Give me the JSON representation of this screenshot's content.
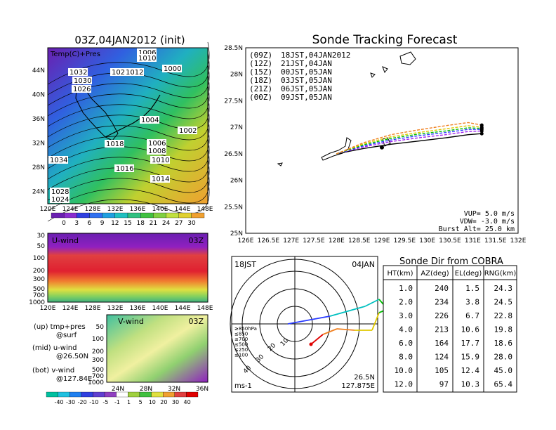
{
  "left_panel": {
    "title": "03Z,04JAN2012 (init)",
    "top_map": {
      "label": "Temp(C)+Pres",
      "lat_ticks": [
        "44N",
        "40N",
        "36N",
        "32N",
        "28N",
        "24N"
      ],
      "lon_ticks": [
        "120E",
        "124E",
        "128E",
        "132E",
        "136E",
        "140E",
        "144E",
        "148E"
      ],
      "pressure_labels": [
        "1006",
        "1010",
        "1032",
        "1020",
        "1012",
        "1000",
        "1030",
        "1026",
        "1004",
        "1002",
        "1018",
        "1006",
        "1008",
        "1034",
        "1010",
        "1016",
        "1014",
        "1028",
        "1024"
      ],
      "colorbar_ticks": [
        "0",
        "3",
        "6",
        "9",
        "12",
        "15",
        "18",
        "21",
        "24",
        "27",
        "30"
      ]
    },
    "u_panel": {
      "label": "U-wind",
      "time": "03Z",
      "p_ticks": [
        "30",
        "50",
        "100",
        "200",
        "300",
        "500",
        "700",
        "1000"
      ],
      "lon_ticks": [
        "120E",
        "124E",
        "128E",
        "132E",
        "136E",
        "140E",
        "144E",
        "148E"
      ]
    },
    "v_panel": {
      "label": "V-wind",
      "time": "03Z",
      "p_ticks": [
        "50",
        "100",
        "200",
        "300",
        "500",
        "700",
        "1000"
      ],
      "lat_ticks": [
        "24N",
        "28N",
        "32N",
        "36N"
      ]
    },
    "legend_lines": [
      "(up) tmp+pres",
      "@surf",
      "(mid) u-wind",
      "@26.50N",
      "(bot) v-wind",
      "@127.84E"
    ],
    "wind_colorbar_ticks": [
      "-40",
      "-30",
      "-20",
      "-10",
      "-5",
      "-1",
      "1",
      "5",
      "10",
      "20",
      "30",
      "40"
    ]
  },
  "track_panel": {
    "title": "Sonde Tracking Forecast",
    "legend": [
      {
        "utc": "(09Z)",
        "jst": "18JST,04JAN2012",
        "color": "#000000"
      },
      {
        "utc": "(12Z)",
        "jst": "21JST,04JAN",
        "color": "#a020f0"
      },
      {
        "utc": "(15Z)",
        "jst": "00JST,05JAN",
        "color": "#2a3cff"
      },
      {
        "utc": "(18Z)",
        "jst": "03JST,05JAN",
        "color": "#00c000"
      },
      {
        "utc": "(21Z)",
        "jst": "06JST,05JAN",
        "color": "#e0c800"
      },
      {
        "utc": "(00Z)",
        "jst": "09JST,05JAN",
        "color": "#f08020"
      }
    ],
    "lat_ticks": [
      "28.5N",
      "28N",
      "27.5N",
      "27N",
      "26.5N",
      "26N",
      "25.5N",
      "25N"
    ],
    "lon_ticks": [
      "126E",
      "126.5E",
      "127E",
      "127.5E",
      "128E",
      "128.5E",
      "129E",
      "129.5E",
      "130E",
      "130.5E",
      "131E",
      "131.5E",
      "132E"
    ],
    "params": [
      "VUP= 5.0 m/s",
      "VDW= -3.0 m/s",
      "Burst Alt= 25.0 km"
    ]
  },
  "polar_panel": {
    "time_label": "18JST",
    "date_label": "04JAN",
    "unit": "ms-1",
    "location": [
      "26.5N",
      "127.875E"
    ],
    "ring_labels": [
      "10",
      "20",
      "30",
      "40"
    ],
    "level_legend": [
      {
        "label": "≥850hPa",
        "color": "#e00000"
      },
      {
        "label": "≤850",
        "color": "#f08020"
      },
      {
        "label": "≤700",
        "color": "#e0c800"
      },
      {
        "label": "≤500",
        "color": "#00c000"
      },
      {
        "label": "≤250",
        "color": "#00c0c0"
      },
      {
        "label": "≤100",
        "color": "#2a3cff"
      }
    ]
  },
  "table": {
    "title": "Sonde Dir from COBRA",
    "headers": [
      "HT(km)",
      "AZ(deg)",
      "EL(deg)",
      "RNG(km)"
    ],
    "rows": [
      [
        "1.0",
        "240",
        "1.5",
        "24.3"
      ],
      [
        "2.0",
        "234",
        "3.8",
        "24.5"
      ],
      [
        "3.0",
        "226",
        "6.7",
        "22.8"
      ],
      [
        "4.0",
        "213",
        "10.6",
        "19.8"
      ],
      [
        "6.0",
        "164",
        "17.7",
        "18.6"
      ],
      [
        "8.0",
        "124",
        "15.9",
        "28.0"
      ],
      [
        "10.0",
        "105",
        "12.4",
        "45.0"
      ],
      [
        "12.0",
        "97",
        "10.3",
        "65.4"
      ]
    ]
  },
  "chart_data": [
    {
      "type": "line",
      "title": "Sonde Tracking Forecast",
      "xlim": [
        126,
        132
      ],
      "ylim": [
        25,
        28.5
      ],
      "series": [
        {
          "name": "(09Z) 18JST,04JAN2012",
          "x": [
            128.0,
            128.6,
            129.2,
            129.8,
            130.4,
            130.9,
            131.2
          ],
          "y": [
            26.5,
            26.6,
            26.68,
            26.74,
            26.8,
            26.86,
            26.88
          ]
        },
        {
          "name": "(12Z) 21JST,04JAN",
          "x": [
            128.0,
            128.6,
            129.2,
            129.8,
            130.4,
            130.9,
            131.2
          ],
          "y": [
            26.5,
            26.63,
            26.73,
            26.8,
            26.86,
            26.92,
            26.93
          ]
        },
        {
          "name": "(15Z) 00JST,05JAN",
          "x": [
            128.0,
            128.6,
            129.2,
            129.8,
            130.4,
            130.9,
            131.2
          ],
          "y": [
            26.5,
            26.65,
            26.76,
            26.84,
            26.9,
            26.96,
            26.96
          ]
        },
        {
          "name": "(18Z) 03JST,05JAN",
          "x": [
            128.0,
            128.6,
            129.2,
            129.8,
            130.4,
            130.9,
            131.2
          ],
          "y": [
            26.5,
            26.67,
            26.79,
            26.87,
            26.93,
            26.99,
            26.98
          ]
        },
        {
          "name": "(21Z) 06JST,05JAN",
          "x": [
            128.0,
            128.6,
            129.2,
            129.8,
            130.4,
            130.9,
            131.2
          ],
          "y": [
            26.5,
            26.69,
            26.82,
            26.9,
            26.97,
            27.03,
            27.0
          ]
        },
        {
          "name": "(00Z) 09JST,05JAN",
          "x": [
            128.0,
            128.6,
            129.2,
            129.8,
            130.4,
            130.9,
            131.2
          ],
          "y": [
            26.5,
            26.71,
            26.86,
            26.95,
            27.03,
            27.09,
            27.04
          ]
        }
      ]
    },
    {
      "type": "table",
      "title": "Sonde Dir from COBRA",
      "columns": [
        "HT(km)",
        "AZ(deg)",
        "EL(deg)",
        "RNG(km)"
      ],
      "rows": [
        [
          1.0,
          240,
          1.5,
          24.3
        ],
        [
          2.0,
          234,
          3.8,
          24.5
        ],
        [
          3.0,
          226,
          6.7,
          22.8
        ],
        [
          4.0,
          213,
          10.6,
          19.8
        ],
        [
          6.0,
          164,
          17.7,
          18.6
        ],
        [
          8.0,
          124,
          15.9,
          28.0
        ],
        [
          10.0,
          105,
          12.4,
          45.0
        ],
        [
          12.0,
          97,
          10.3,
          65.4
        ]
      ]
    }
  ]
}
